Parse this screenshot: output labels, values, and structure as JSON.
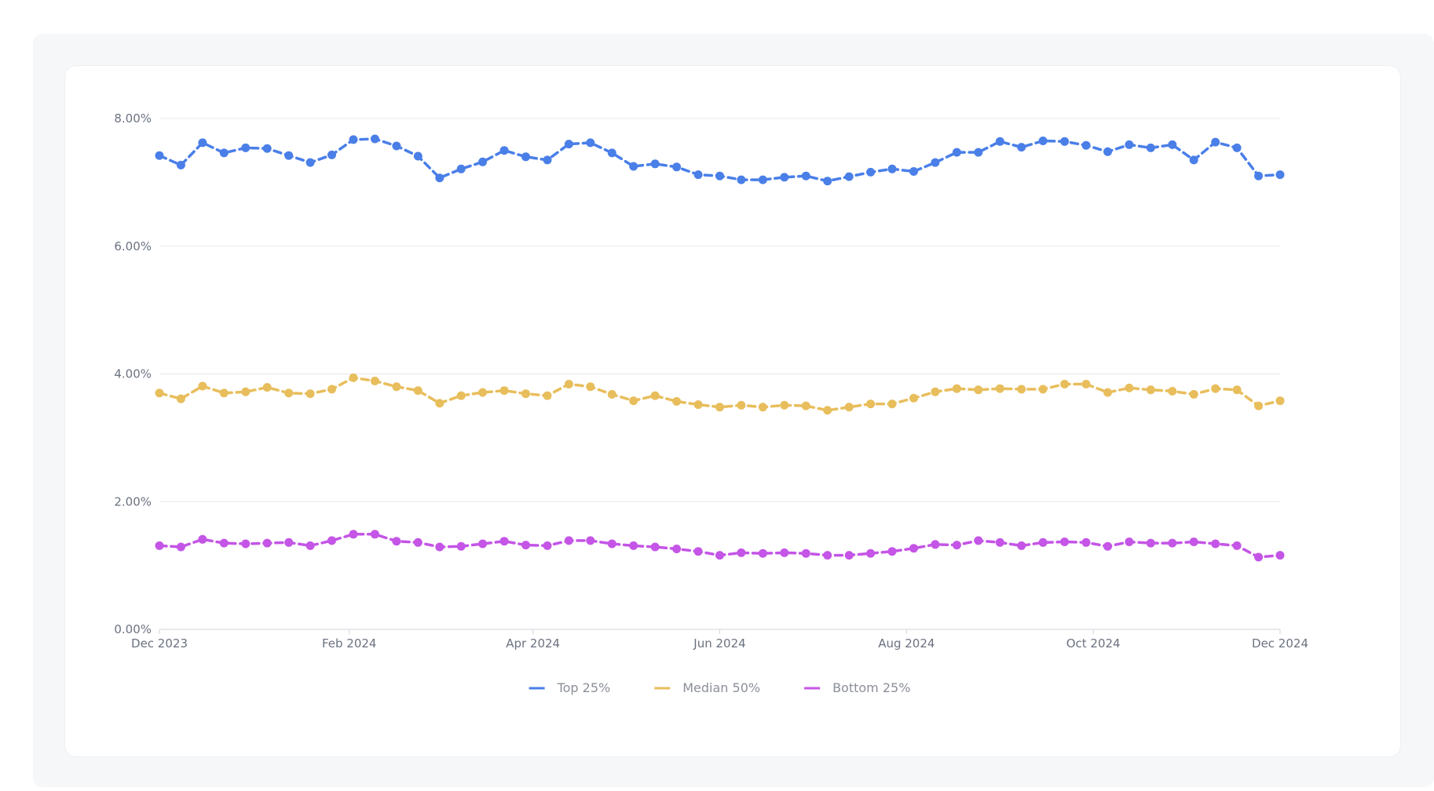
{
  "chart_data": {
    "type": "line",
    "x_start": "2023-12-01",
    "x_end": "2024-12-01",
    "ylim": [
      0,
      8
    ],
    "yticks": [
      {
        "value": 0,
        "label": "0.00%"
      },
      {
        "value": 2,
        "label": "2.00%"
      },
      {
        "value": 4,
        "label": "4.00%"
      },
      {
        "value": 6,
        "label": "6.00%"
      },
      {
        "value": 8,
        "label": "8.00%"
      }
    ],
    "xticks": [
      {
        "date": "2023-12-01",
        "label": "Dec 2023"
      },
      {
        "date": "2024-02-01",
        "label": "Feb 2024"
      },
      {
        "date": "2024-04-01",
        "label": "Apr 2024"
      },
      {
        "date": "2024-06-01",
        "label": "Jun 2024"
      },
      {
        "date": "2024-08-01",
        "label": "Aug 2024"
      },
      {
        "date": "2024-10-01",
        "label": "Oct 2024"
      },
      {
        "date": "2024-12-01",
        "label": "Dec 2024"
      }
    ],
    "grid": true,
    "legend_position": "bottom",
    "series": [
      {
        "name": "Top 25%",
        "color": "#4a7fe8",
        "values": [
          7.42,
          7.27,
          7.62,
          7.46,
          7.54,
          7.53,
          7.42,
          7.31,
          7.43,
          7.67,
          7.68,
          7.57,
          7.41,
          7.07,
          7.21,
          7.32,
          7.5,
          7.4,
          7.35,
          7.6,
          7.62,
          7.46,
          7.25,
          7.29,
          7.24,
          7.12,
          7.1,
          7.04,
          7.04,
          7.08,
          7.1,
          7.02,
          7.09,
          7.16,
          7.21,
          7.17,
          7.31,
          7.47,
          7.47,
          7.64,
          7.55,
          7.65,
          7.64,
          7.58,
          7.48,
          7.59,
          7.54,
          7.59,
          7.35,
          7.63,
          7.54,
          7.1,
          7.12
        ]
      },
      {
        "name": "Median 50%",
        "color": "#e8be5c",
        "values": [
          3.7,
          3.61,
          3.81,
          3.7,
          3.72,
          3.79,
          3.7,
          3.69,
          3.76,
          3.94,
          3.89,
          3.8,
          3.74,
          3.54,
          3.66,
          3.71,
          3.74,
          3.69,
          3.66,
          3.84,
          3.8,
          3.68,
          3.58,
          3.66,
          3.57,
          3.52,
          3.48,
          3.51,
          3.48,
          3.51,
          3.5,
          3.43,
          3.48,
          3.53,
          3.53,
          3.62,
          3.72,
          3.77,
          3.75,
          3.77,
          3.76,
          3.76,
          3.84,
          3.84,
          3.71,
          3.78,
          3.75,
          3.73,
          3.68,
          3.77,
          3.75,
          3.5,
          3.58
        ]
      },
      {
        "name": "Bottom 25%",
        "color": "#c455e6",
        "values": [
          1.31,
          1.29,
          1.41,
          1.35,
          1.34,
          1.35,
          1.36,
          1.31,
          1.39,
          1.49,
          1.49,
          1.38,
          1.36,
          1.29,
          1.3,
          1.34,
          1.38,
          1.32,
          1.31,
          1.39,
          1.39,
          1.34,
          1.31,
          1.29,
          1.26,
          1.22,
          1.16,
          1.2,
          1.19,
          1.2,
          1.19,
          1.16,
          1.16,
          1.19,
          1.22,
          1.27,
          1.33,
          1.32,
          1.39,
          1.36,
          1.31,
          1.36,
          1.37,
          1.36,
          1.3,
          1.37,
          1.35,
          1.35,
          1.37,
          1.34,
          1.31,
          1.13,
          1.16
        ]
      }
    ]
  }
}
